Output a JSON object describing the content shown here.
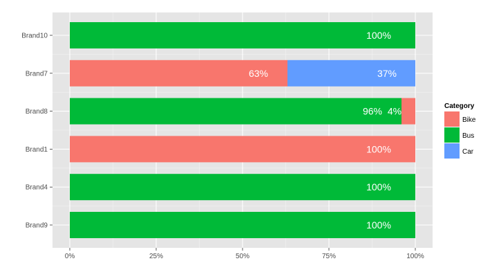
{
  "chart_data": {
    "type": "bar",
    "orientation": "horizontal",
    "stacked": true,
    "categories": [
      "Brand10",
      "Brand7",
      "Brand8",
      "Brand1",
      "Brand4",
      "Brand9"
    ],
    "series": [
      {
        "name": "Bike",
        "color": "#F8766D",
        "values": [
          0,
          63,
          4,
          100,
          0,
          0
        ]
      },
      {
        "name": "Bus",
        "color": "#00BA38",
        "values": [
          100,
          0,
          96,
          0,
          100,
          100
        ]
      },
      {
        "name": "Car",
        "color": "#619CFF",
        "values": [
          0,
          37,
          0,
          0,
          0,
          0
        ]
      }
    ],
    "segment_order": [
      "Bus",
      "Bike",
      "Car"
    ],
    "xlim": [
      0,
      100
    ],
    "x_ticks": [
      0,
      25,
      50,
      75,
      100
    ],
    "x_tick_labels": [
      "0%",
      "25%",
      "50%",
      "75%",
      "100%"
    ],
    "bar_labels": [
      [
        "100%"
      ],
      [
        "63%",
        "37%"
      ],
      [
        "96%",
        "4%"
      ],
      [
        "100%"
      ],
      [
        "100%"
      ],
      [
        "100%"
      ]
    ],
    "legend": {
      "title": "Category",
      "entries": [
        "Bike",
        "Bus",
        "Car"
      ],
      "position": "right"
    },
    "grid": true,
    "panel_background": "#E5E5E5"
  }
}
